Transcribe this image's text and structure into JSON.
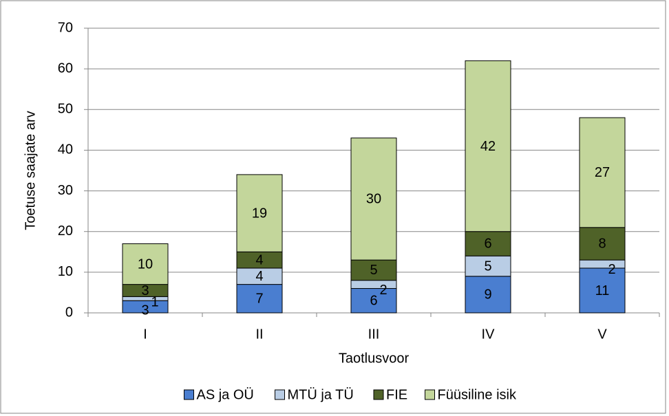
{
  "chart_data": {
    "type": "stacked_bar",
    "categories": [
      "I",
      "II",
      "III",
      "IV",
      "V"
    ],
    "series": [
      {
        "name": "AS ja OÜ",
        "color": "#4a7ed0",
        "values": [
          3,
          7,
          6,
          9,
          11
        ]
      },
      {
        "name": "MTÜ ja TÜ",
        "color": "#b9cde5",
        "values": [
          1,
          4,
          2,
          5,
          2
        ]
      },
      {
        "name": "FIE",
        "color": "#4f6228",
        "values": [
          3,
          4,
          5,
          6,
          8
        ]
      },
      {
        "name": "Füüsiline isik",
        "color": "#c3d69b",
        "values": [
          10,
          19,
          30,
          42,
          27
        ]
      }
    ],
    "x_label": "Taotlusvoor",
    "y_label": "Toetuse saajate arv",
    "ylim": [
      0,
      70
    ],
    "yticks": [
      0,
      10,
      20,
      30,
      40,
      50,
      60,
      70
    ],
    "grid": true,
    "legend": "bottom"
  }
}
